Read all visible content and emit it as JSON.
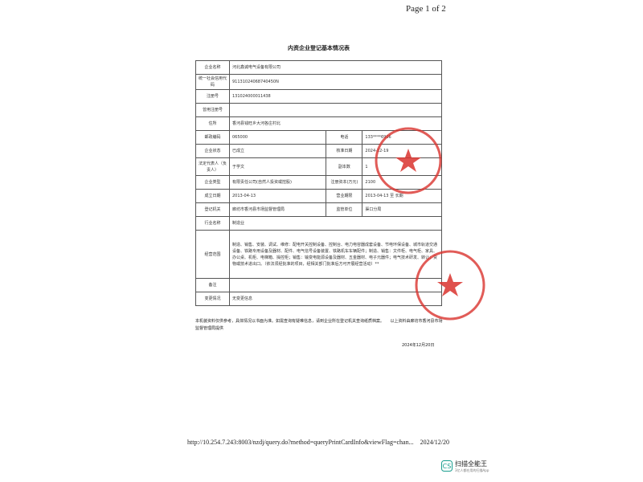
{
  "header": {
    "page": "Page 1 of 2"
  },
  "title": "内资企业登记基本情况表",
  "table": {
    "rows": [
      [
        "企业名称",
        "河北鑫诚电气设备有限公司"
      ],
      [
        "统一社会信用代码",
        "91131024068740450N"
      ],
      [
        "注册号",
        "131024000011438"
      ],
      [
        "曾用注册号"
      ],
      [
        "住所",
        "香河县钱旺乡大河各庄村北"
      ],
      [
        "邮政编码",
        "065000",
        "电话",
        "133****6906"
      ],
      [
        "企业状态",
        "已成立",
        "核准日期",
        "2024-12-19"
      ],
      [
        "法定代表人（负责人）",
        "于学文",
        "副本数",
        "1"
      ],
      [
        "企业类型",
        "有限责任公司(自然人投资或控股)",
        "注册资本(万元)",
        "2100"
      ],
      [
        "成立日期",
        "2013-04-13",
        "营业期限",
        "2013-04-13 至 长期"
      ],
      [
        "登记机关",
        "廊坊市香河县市场监督管理局",
        "监管单位",
        "渠口分局"
      ],
      [
        "行业名称",
        "制造业"
      ],
      [
        "经营范围",
        "制造、销售、安装、调试、维修：配电开关控制设备、控制台、电力电容器成套设备、节电环保设备、城市轨道交通设备、铁路专用设备及器材、配件、电气信号设备装置、铁路机车车辆配件；制造、销售：文件柜、电气柜、家具、办公桌、机柜、电梯箱、操控柜；销售：输变电能源设备及器材、五金器材、电子元器件；电气技术研发、转让；货物或技术进出口。（依法须经批准的项目，经相关部门批准后方可开展经营活动）**"
      ],
      [
        "备注"
      ],
      [
        "变更情况",
        "无变更信息"
      ]
    ]
  },
  "note": "本机装资料仅供参考，具体情况以书面为准。如需查询有疑难信息，请到企业所在登记机关查询纸质档案。　　以上资料由廊坊市香河县市场监督管理局提供",
  "date": "2024年12月20日",
  "footer": {
    "url": "http://10.254.7.243:8003/nzdj/query.do?method=queryPrintCardInfo&viewFlag=chan...",
    "printed": "2024/12/20"
  },
  "scanner": {
    "name": "扫描全能王",
    "slogan": "3亿人都在用的扫描App"
  }
}
